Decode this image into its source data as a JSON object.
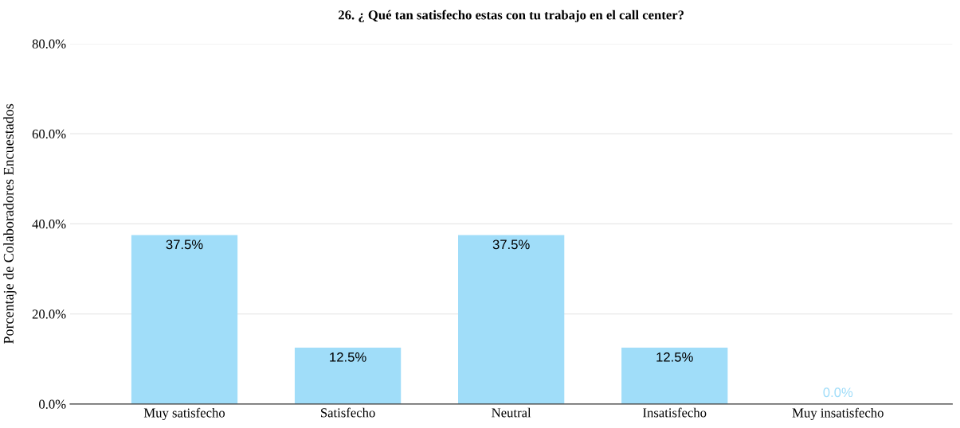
{
  "chart_data": {
    "type": "bar",
    "title": "26. ¿ Qué tan satisfecho estas con tu trabajo en el call center?",
    "ylabel": "Porcentaje de Colaboradores Encuestados",
    "categories": [
      "Muy satisfecho",
      "Satisfecho",
      "Neutral",
      "Insatisfecho",
      "Muy insatisfecho"
    ],
    "values": [
      37.5,
      12.5,
      37.5,
      12.5,
      0
    ],
    "value_labels": [
      "37.5%",
      "12.5%",
      "37.5%",
      "12.5%",
      "0.0%"
    ],
    "color": "#a0ddf9",
    "ylim": [
      0,
      80
    ],
    "yticks": [
      {
        "value": 0,
        "label": "0.0%"
      },
      {
        "value": 20,
        "label": "20.0%"
      },
      {
        "value": 40,
        "label": "40.0%"
      },
      {
        "value": 60,
        "label": "60.0%"
      },
      {
        "value": 80,
        "label": "80.0%"
      }
    ],
    "grid": "y"
  }
}
